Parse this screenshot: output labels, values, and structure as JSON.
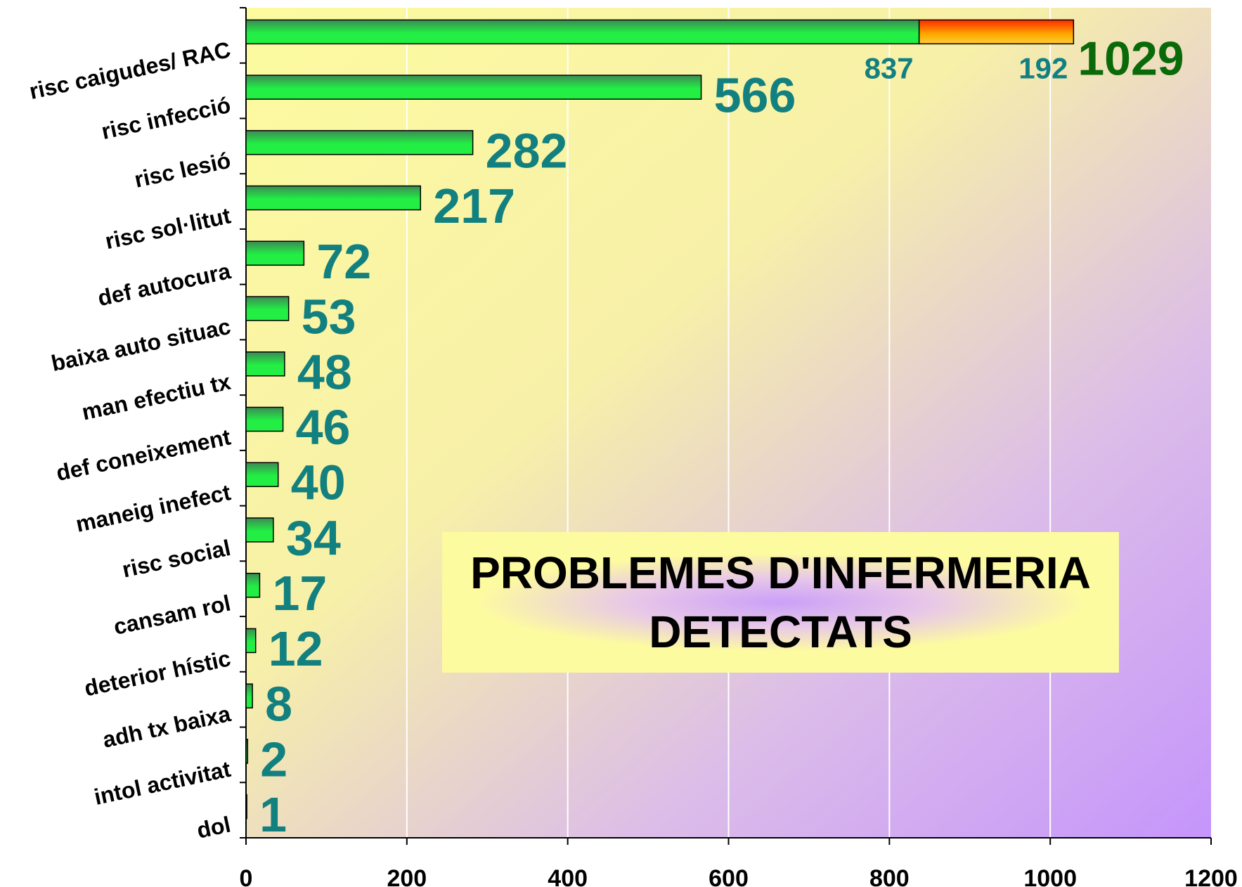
{
  "chart_data": {
    "type": "stacked_bar_horizontal",
    "title": "PROBLEMES D'INFERMERIA DETECTATS",
    "categories": [
      "risc caigudes/ RAC",
      "risc infecció",
      "risc lesió",
      "risc sol·litut",
      "def autocura",
      "baixa auto situac",
      "man efectiu tx",
      "def coneixement",
      "maneig inefect",
      "risc social",
      "cansam rol",
      "deterior hístic",
      "adh tx baixa",
      "intol activitat",
      "dol"
    ],
    "series": [
      {
        "color": "#22ee44",
        "values": [
          837,
          566,
          282,
          217,
          72,
          53,
          48,
          46,
          40,
          34,
          17,
          12,
          8,
          2,
          1
        ]
      },
      {
        "color": "#ff9900",
        "values": [
          192,
          null,
          null,
          null,
          null,
          null,
          null,
          null,
          null,
          null,
          null,
          null,
          null,
          null,
          null
        ]
      }
    ],
    "totals": [
      1029,
      null,
      null,
      null,
      null,
      null,
      null,
      null,
      null,
      null,
      null,
      null,
      null,
      null,
      null
    ],
    "xlim": [
      0,
      1200
    ],
    "xticks": [
      0,
      200,
      400,
      600,
      800,
      1000,
      1200
    ],
    "grid": true
  }
}
